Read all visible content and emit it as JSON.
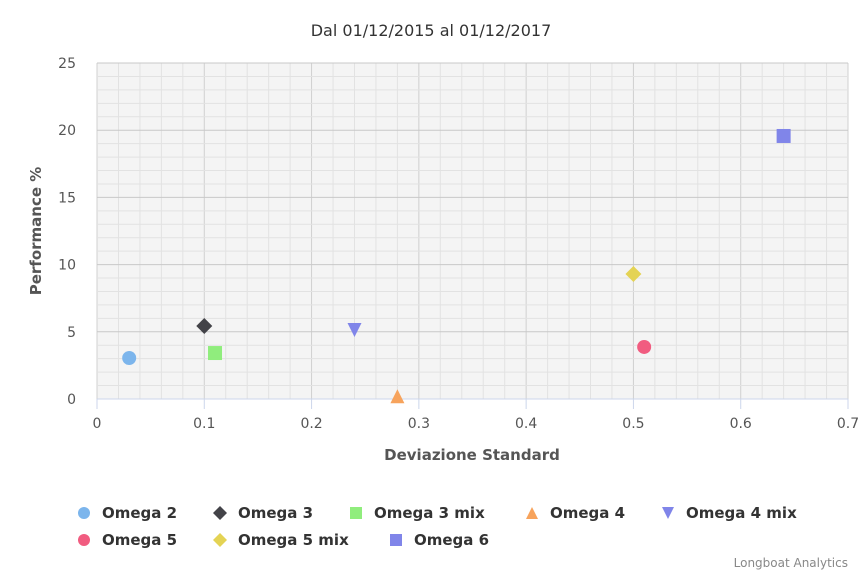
{
  "chart_data": {
    "type": "scatter",
    "title": "Dal 01/12/2015 al 01/12/2017",
    "xlabel": "Deviazione Standard",
    "ylabel": "Performance %",
    "xlim": [
      0,
      0.7
    ],
    "ylim": [
      0,
      25
    ],
    "x_ticks": [
      "0",
      "0.1",
      "0.2",
      "0.3",
      "0.4",
      "0.5",
      "0.6",
      "0.7"
    ],
    "y_ticks": [
      "0",
      "5",
      "10",
      "15",
      "20",
      "25"
    ],
    "grid": true,
    "legend_position": "bottom",
    "credits": "Longboat Analytics",
    "series": [
      {
        "name": "Omega 2",
        "symbol": "circle",
        "color": "#7cb5ec",
        "x": 0.03,
        "y": 3.05
      },
      {
        "name": "Omega 3",
        "symbol": "diamond",
        "color": "#434348",
        "x": 0.1,
        "y": 5.43
      },
      {
        "name": "Omega 3 mix",
        "symbol": "square",
        "color": "#90ed7d",
        "x": 0.11,
        "y": 3.42
      },
      {
        "name": "Omega 4",
        "symbol": "triangle",
        "color": "#f7a35c",
        "x": 0.28,
        "y": 0.2
      },
      {
        "name": "Omega 4 mix",
        "symbol": "triangle-down",
        "color": "#8085e9",
        "x": 0.24,
        "y": 5.13
      },
      {
        "name": "Omega 5",
        "symbol": "circle",
        "color": "#f15c80",
        "x": 0.51,
        "y": 3.87
      },
      {
        "name": "Omega 5 mix",
        "symbol": "diamond",
        "color": "#e4d354",
        "x": 0.5,
        "y": 9.3
      },
      {
        "name": "Omega 6",
        "symbol": "square",
        "color": "#8085e9",
        "x": 0.64,
        "y": 19.57
      }
    ]
  }
}
